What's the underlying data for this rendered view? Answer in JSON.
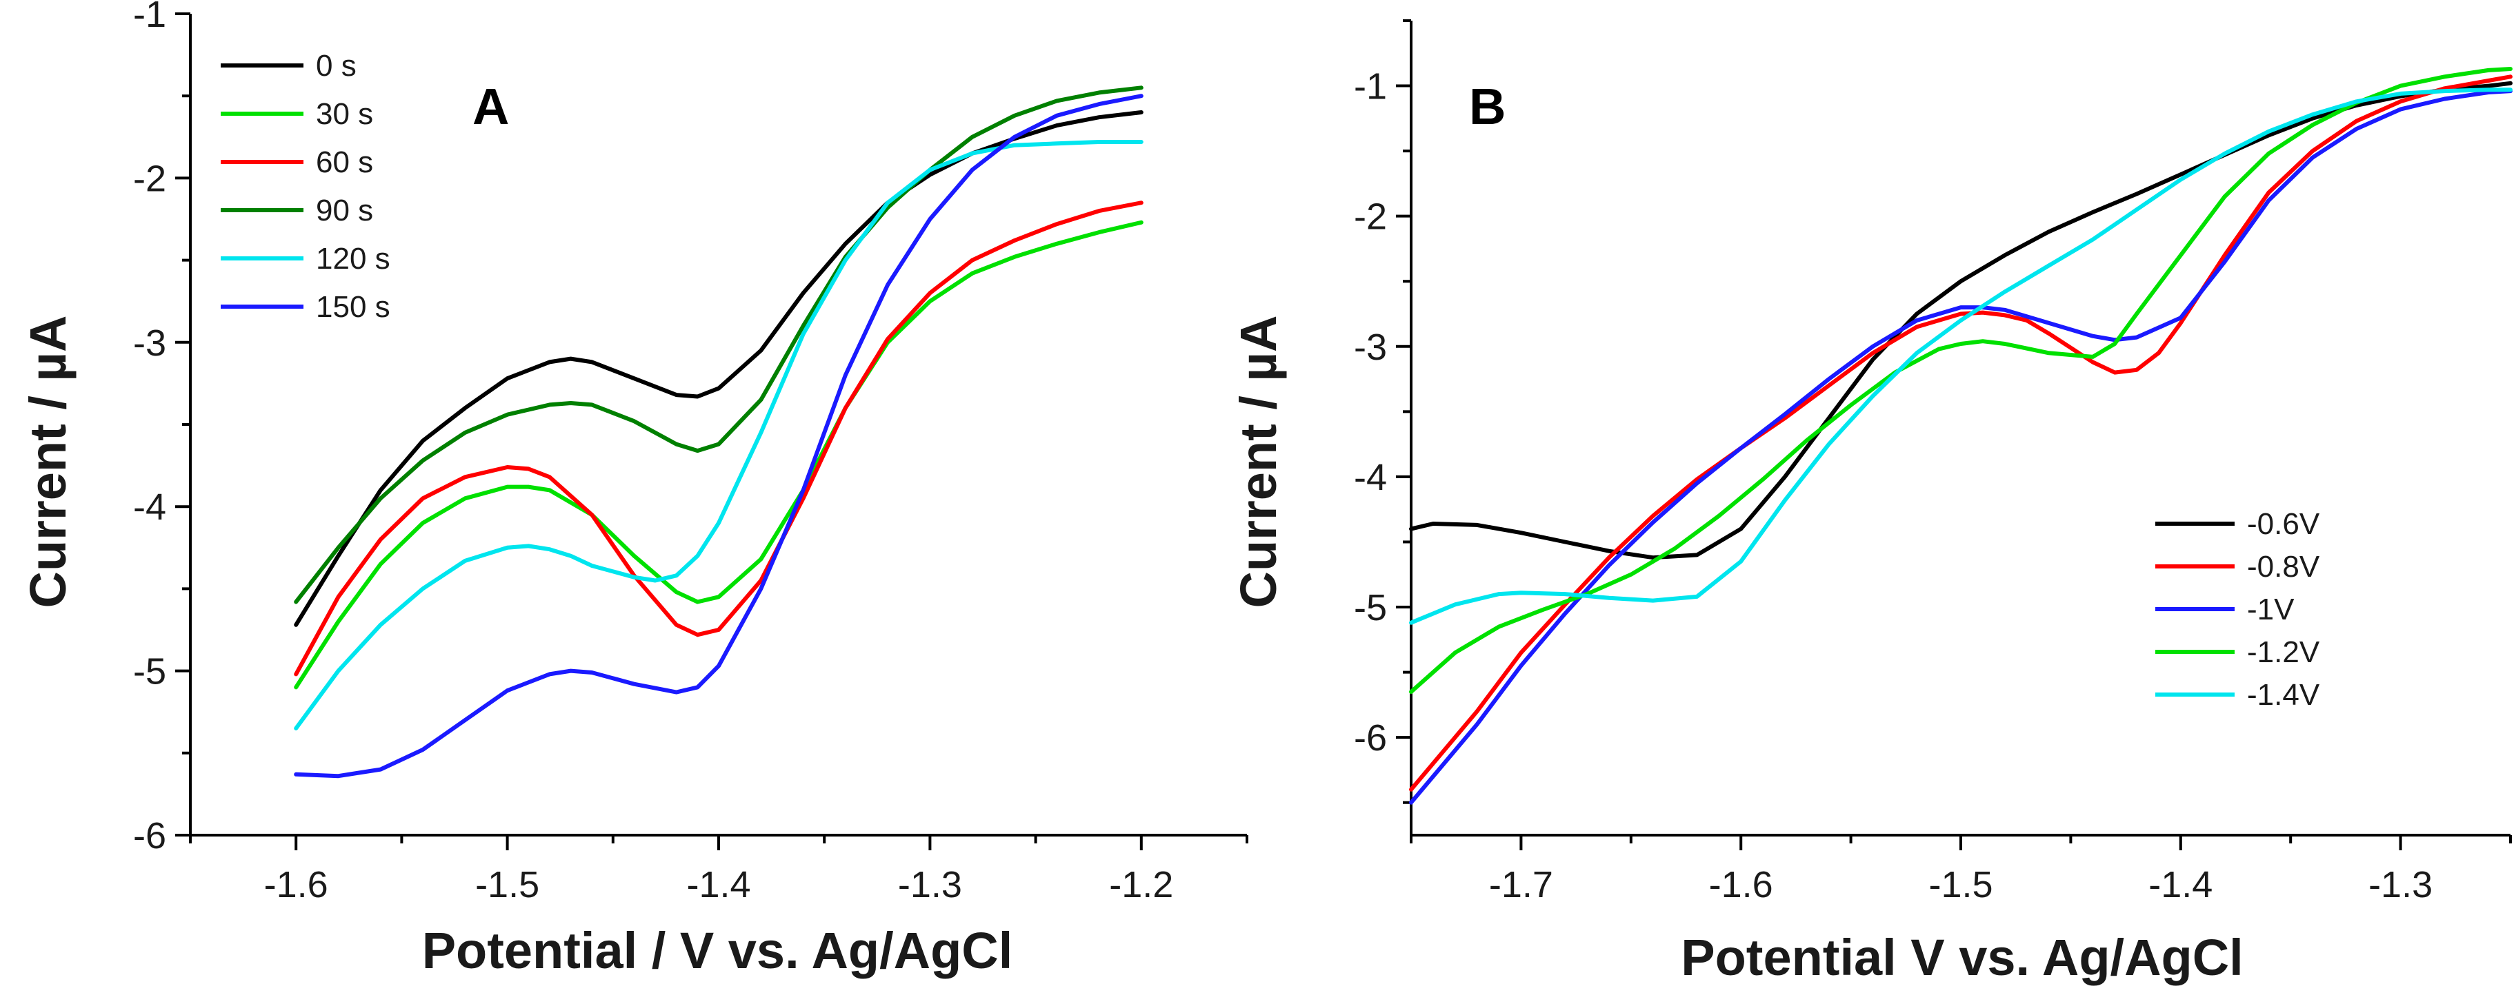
{
  "chart_data": [
    {
      "panel": "A",
      "type": "line",
      "xlabel": "Potential / V vs. Ag/AgCl",
      "ylabel": "Current / µA",
      "xlim": [
        -1.65,
        -1.15
      ],
      "ylim": [
        -6,
        -1
      ],
      "xticks": [
        -1.6,
        -1.5,
        -1.4,
        -1.3,
        -1.2
      ],
      "xtick_labels": [
        "-1.6",
        "-1.5",
        "-1.4",
        "-1.3",
        "-1.2"
      ],
      "yticks": [
        -6,
        -5,
        -4,
        -3,
        -2,
        -1
      ],
      "ytick_labels": [
        "-6",
        "-5",
        "-4",
        "-3",
        "-2",
        "-1"
      ],
      "legend_position": "top-left",
      "series": [
        {
          "name": "0 s",
          "color": "#000000",
          "x": [
            -1.6,
            -1.58,
            -1.56,
            -1.54,
            -1.52,
            -1.5,
            -1.48,
            -1.47,
            -1.46,
            -1.44,
            -1.42,
            -1.41,
            -1.4,
            -1.38,
            -1.36,
            -1.34,
            -1.32,
            -1.3,
            -1.28,
            -1.26,
            -1.24,
            -1.22,
            -1.2
          ],
          "y": [
            -4.72,
            -4.3,
            -3.9,
            -3.6,
            -3.4,
            -3.22,
            -3.12,
            -3.1,
            -3.12,
            -3.22,
            -3.32,
            -3.33,
            -3.28,
            -3.05,
            -2.7,
            -2.4,
            -2.15,
            -1.98,
            -1.85,
            -1.76,
            -1.68,
            -1.63,
            -1.6
          ]
        },
        {
          "name": "30 s",
          "color": "#00e000",
          "x": [
            -1.6,
            -1.58,
            -1.56,
            -1.54,
            -1.52,
            -1.5,
            -1.49,
            -1.48,
            -1.46,
            -1.44,
            -1.42,
            -1.41,
            -1.4,
            -1.38,
            -1.36,
            -1.34,
            -1.32,
            -1.3,
            -1.28,
            -1.26,
            -1.24,
            -1.22,
            -1.2
          ],
          "y": [
            -5.1,
            -4.7,
            -4.35,
            -4.1,
            -3.95,
            -3.88,
            -3.88,
            -3.9,
            -4.05,
            -4.3,
            -4.52,
            -4.58,
            -4.55,
            -4.32,
            -3.9,
            -3.4,
            -3.0,
            -2.75,
            -2.58,
            -2.48,
            -2.4,
            -2.33,
            -2.27
          ]
        },
        {
          "name": "60 s",
          "color": "#ff0000",
          "x": [
            -1.6,
            -1.58,
            -1.56,
            -1.54,
            -1.52,
            -1.5,
            -1.49,
            -1.48,
            -1.46,
            -1.44,
            -1.42,
            -1.41,
            -1.4,
            -1.38,
            -1.36,
            -1.34,
            -1.32,
            -1.3,
            -1.28,
            -1.26,
            -1.24,
            -1.22,
            -1.2
          ],
          "y": [
            -5.02,
            -4.55,
            -4.2,
            -3.95,
            -3.82,
            -3.76,
            -3.77,
            -3.82,
            -4.05,
            -4.42,
            -4.72,
            -4.78,
            -4.75,
            -4.45,
            -3.95,
            -3.4,
            -2.98,
            -2.7,
            -2.5,
            -2.38,
            -2.28,
            -2.2,
            -2.15
          ]
        },
        {
          "name": "90 s",
          "color": "#008000",
          "x": [
            -1.6,
            -1.58,
            -1.56,
            -1.54,
            -1.52,
            -1.5,
            -1.48,
            -1.47,
            -1.46,
            -1.44,
            -1.42,
            -1.41,
            -1.4,
            -1.38,
            -1.36,
            -1.34,
            -1.32,
            -1.3,
            -1.28,
            -1.26,
            -1.24,
            -1.22,
            -1.2
          ],
          "y": [
            -4.58,
            -4.25,
            -3.95,
            -3.72,
            -3.55,
            -3.44,
            -3.38,
            -3.37,
            -3.38,
            -3.48,
            -3.62,
            -3.66,
            -3.62,
            -3.35,
            -2.9,
            -2.48,
            -2.18,
            -1.95,
            -1.75,
            -1.62,
            -1.53,
            -1.48,
            -1.45
          ]
        },
        {
          "name": "120 s",
          "color": "#00e5ee",
          "x": [
            -1.6,
            -1.58,
            -1.56,
            -1.54,
            -1.52,
            -1.5,
            -1.49,
            -1.48,
            -1.47,
            -1.46,
            -1.44,
            -1.43,
            -1.42,
            -1.41,
            -1.4,
            -1.38,
            -1.36,
            -1.34,
            -1.32,
            -1.3,
            -1.28,
            -1.26,
            -1.24,
            -1.22,
            -1.2
          ],
          "y": [
            -5.35,
            -5.0,
            -4.72,
            -4.5,
            -4.33,
            -4.25,
            -4.24,
            -4.26,
            -4.3,
            -4.36,
            -4.43,
            -4.45,
            -4.42,
            -4.3,
            -4.1,
            -3.55,
            -2.95,
            -2.5,
            -2.15,
            -1.95,
            -1.85,
            -1.8,
            -1.79,
            -1.78,
            -1.78
          ]
        },
        {
          "name": "150 s",
          "color": "#1a1aff",
          "x": [
            -1.6,
            -1.58,
            -1.56,
            -1.54,
            -1.52,
            -1.5,
            -1.48,
            -1.47,
            -1.46,
            -1.44,
            -1.42,
            -1.41,
            -1.4,
            -1.38,
            -1.36,
            -1.35,
            -1.34,
            -1.32,
            -1.3,
            -1.28,
            -1.26,
            -1.24,
            -1.22,
            -1.2
          ],
          "y": [
            -5.63,
            -5.64,
            -5.6,
            -5.48,
            -5.3,
            -5.12,
            -5.02,
            -5.0,
            -5.01,
            -5.08,
            -5.13,
            -5.1,
            -4.97,
            -4.5,
            -3.9,
            -3.55,
            -3.2,
            -2.65,
            -2.25,
            -1.95,
            -1.75,
            -1.62,
            -1.55,
            -1.5
          ]
        }
      ]
    },
    {
      "panel": "B",
      "type": "line",
      "xlabel": "Potential V vs. Ag/AgCl",
      "ylabel": "Current / µA",
      "xlim": [
        -1.75,
        -1.25
      ],
      "ylim": [
        -6.75,
        -0.5
      ],
      "xticks": [
        -1.7,
        -1.6,
        -1.5,
        -1.4,
        -1.3
      ],
      "xtick_labels": [
        "-1.7",
        "-1.6",
        "-1.5",
        "-1.4",
        "-1.3"
      ],
      "yticks": [
        -6,
        -5,
        -4,
        -3,
        -2,
        -1
      ],
      "ytick_labels": [
        "-6",
        "-5",
        "-4",
        "-3",
        "-2",
        "-1"
      ],
      "legend_position": "lower-right",
      "series": [
        {
          "name": "-0.6V",
          "color": "#000000",
          "x": [
            -1.75,
            -1.74,
            -1.72,
            -1.7,
            -1.68,
            -1.66,
            -1.64,
            -1.62,
            -1.6,
            -1.58,
            -1.56,
            -1.54,
            -1.52,
            -1.5,
            -1.48,
            -1.46,
            -1.44,
            -1.42,
            -1.4,
            -1.38,
            -1.36,
            -1.34,
            -1.32,
            -1.3,
            -1.28,
            -1.26,
            -1.25
          ],
          "y": [
            -4.4,
            -4.36,
            -4.37,
            -4.43,
            -4.5,
            -4.57,
            -4.62,
            -4.6,
            -4.4,
            -4.0,
            -3.55,
            -3.1,
            -2.75,
            -2.5,
            -2.3,
            -2.12,
            -1.97,
            -1.83,
            -1.68,
            -1.53,
            -1.38,
            -1.25,
            -1.15,
            -1.08,
            -1.03,
            -1.0,
            -0.98
          ]
        },
        {
          "name": "-0.8V",
          "color": "#ff0000",
          "x": [
            -1.75,
            -1.72,
            -1.7,
            -1.68,
            -1.66,
            -1.64,
            -1.62,
            -1.6,
            -1.58,
            -1.56,
            -1.54,
            -1.52,
            -1.5,
            -1.49,
            -1.48,
            -1.47,
            -1.46,
            -1.44,
            -1.43,
            -1.42,
            -1.41,
            -1.4,
            -1.38,
            -1.36,
            -1.34,
            -1.32,
            -1.3,
            -1.28,
            -1.26,
            -1.25
          ],
          "y": [
            -6.4,
            -5.8,
            -5.35,
            -4.98,
            -4.62,
            -4.3,
            -4.02,
            -3.78,
            -3.55,
            -3.3,
            -3.05,
            -2.85,
            -2.75,
            -2.74,
            -2.76,
            -2.8,
            -2.9,
            -3.12,
            -3.2,
            -3.18,
            -3.05,
            -2.82,
            -2.3,
            -1.82,
            -1.5,
            -1.27,
            -1.12,
            -1.02,
            -0.96,
            -0.93
          ]
        },
        {
          "name": "-1V",
          "color": "#1a1aff",
          "x": [
            -1.75,
            -1.72,
            -1.7,
            -1.68,
            -1.66,
            -1.64,
            -1.62,
            -1.6,
            -1.58,
            -1.56,
            -1.54,
            -1.52,
            -1.5,
            -1.49,
            -1.48,
            -1.46,
            -1.44,
            -1.43,
            -1.42,
            -1.4,
            -1.38,
            -1.36,
            -1.34,
            -1.32,
            -1.3,
            -1.28,
            -1.26,
            -1.25
          ],
          "y": [
            -6.5,
            -5.9,
            -5.45,
            -5.05,
            -4.68,
            -4.35,
            -4.05,
            -3.78,
            -3.52,
            -3.25,
            -3.0,
            -2.8,
            -2.7,
            -2.7,
            -2.72,
            -2.82,
            -2.92,
            -2.95,
            -2.93,
            -2.78,
            -2.35,
            -1.88,
            -1.55,
            -1.33,
            -1.18,
            -1.1,
            -1.05,
            -1.04
          ]
        },
        {
          "name": "-1.2V",
          "color": "#00e000",
          "x": [
            -1.75,
            -1.73,
            -1.71,
            -1.69,
            -1.67,
            -1.65,
            -1.63,
            -1.61,
            -1.59,
            -1.57,
            -1.55,
            -1.53,
            -1.51,
            -1.5,
            -1.49,
            -1.48,
            -1.46,
            -1.44,
            -1.43,
            -1.42,
            -1.4,
            -1.38,
            -1.36,
            -1.34,
            -1.32,
            -1.3,
            -1.28,
            -1.26,
            -1.25
          ],
          "y": [
            -5.65,
            -5.35,
            -5.15,
            -5.02,
            -4.9,
            -4.75,
            -4.55,
            -4.3,
            -4.02,
            -3.72,
            -3.45,
            -3.2,
            -3.02,
            -2.98,
            -2.96,
            -2.98,
            -3.05,
            -3.08,
            -2.98,
            -2.75,
            -2.3,
            -1.85,
            -1.52,
            -1.3,
            -1.13,
            -1.0,
            -0.93,
            -0.88,
            -0.87
          ]
        },
        {
          "name": "-1.4V",
          "color": "#00e5ee",
          "x": [
            -1.75,
            -1.73,
            -1.71,
            -1.7,
            -1.68,
            -1.66,
            -1.64,
            -1.62,
            -1.6,
            -1.58,
            -1.56,
            -1.54,
            -1.52,
            -1.5,
            -1.48,
            -1.46,
            -1.44,
            -1.42,
            -1.4,
            -1.38,
            -1.36,
            -1.34,
            -1.32,
            -1.3,
            -1.28,
            -1.26,
            -1.25
          ],
          "y": [
            -5.12,
            -4.98,
            -4.9,
            -4.89,
            -4.9,
            -4.93,
            -4.95,
            -4.92,
            -4.65,
            -4.18,
            -3.75,
            -3.38,
            -3.05,
            -2.8,
            -2.58,
            -2.38,
            -2.18,
            -1.95,
            -1.72,
            -1.52,
            -1.35,
            -1.22,
            -1.12,
            -1.06,
            -1.04,
            -1.03,
            -1.03
          ]
        }
      ]
    }
  ],
  "panels": {
    "A": {
      "letter": "A",
      "xlabel": "Potential / V vs. Ag/AgCl",
      "ylabel": "Current / µA"
    },
    "B": {
      "letter": "B",
      "xlabel": "Potential V vs. Ag/AgCl",
      "ylabel": "Current / µA"
    }
  }
}
